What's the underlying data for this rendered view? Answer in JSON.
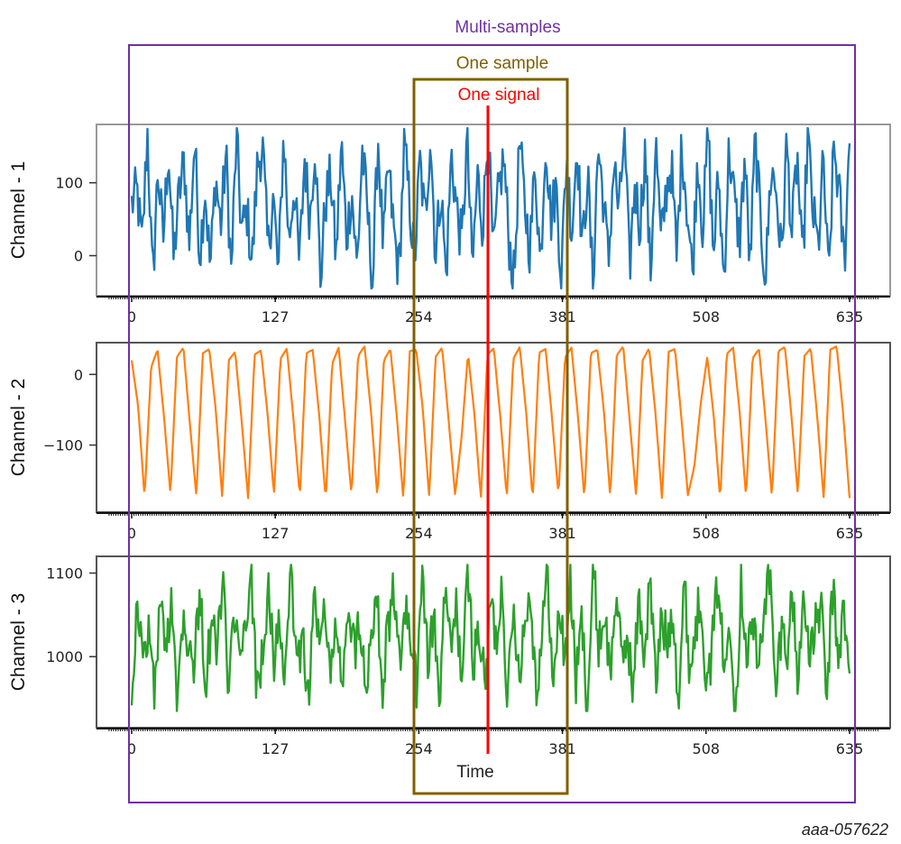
{
  "figure_id": "aaa-057622",
  "annotations": {
    "multi_samples": {
      "label": "Multi-samples",
      "color": "#7030a0"
    },
    "one_sample": {
      "label": "One sample",
      "color": "#7f5f00"
    },
    "one_signal": {
      "label": "One signal",
      "color": "#ff0000"
    }
  },
  "chart_data": {
    "type": "line",
    "xlabel": "Time",
    "xlim": [
      -20,
      660
    ],
    "x_ticks": [
      0,
      127,
      254,
      381,
      508,
      635
    ],
    "x_tick_labels": [
      "0",
      "127",
      "254",
      "381",
      "508",
      "635"
    ],
    "n_points": 636,
    "grid": false,
    "legend": "none",
    "annotation_ranges": {
      "multi_samples_x": [
        0,
        635
      ],
      "one_sample_x": [
        254,
        381
      ],
      "one_signal_x": 314
    },
    "series": [
      {
        "name": "Channel - 1",
        "ylabel": "Channel - 1",
        "color": "#1f77b4",
        "ylim": [
          -55,
          180
        ],
        "y_ticks": [
          0,
          100
        ],
        "y_tick_labels": [
          "0",
          "100"
        ],
        "mean": 55,
        "min": -45,
        "max": 175,
        "values": [
          70,
          90,
          10,
          172,
          -40,
          120,
          20,
          150,
          -5,
          80,
          130,
          15,
          160,
          0,
          95,
          -20,
          110,
          40,
          140,
          -25,
          165,
          30,
          60,
          -10,
          125,
          150,
          5,
          85,
          -30,
          170,
          20,
          100,
          -15,
          135,
          50,
          160,
          -35,
          75,
          110,
          -5,
          155,
          25,
          90,
          -20,
          145,
          60,
          -40,
          165,
          10,
          120,
          35,
          -25,
          150,
          75,
          -10,
          130,
          45,
          170,
          0,
          95,
          -30,
          140,
          65,
          15,
          160,
          -20,
          110,
          40,
          175,
          -5,
          85,
          135,
          20,
          -35,
          155,
          70,
          10,
          125,
          -15,
          165,
          50,
          95,
          -25,
          140,
          30,
          160,
          5,
          115,
          -40,
          150,
          80,
          -10,
          130,
          55,
          170,
          -20,
          100,
          40,
          145,
          -30,
          160,
          15,
          90,
          125,
          -5,
          155,
          65,
          -25,
          140,
          35,
          170,
          0,
          110,
          -35,
          150,
          75,
          20,
          135,
          -15,
          160,
          45,
          -30,
          120,
          90,
          -5,
          155,
          25,
          140,
          -20,
          165,
          60,
          10,
          130,
          -40,
          150,
          85,
          -10,
          160
        ]
      },
      {
        "name": "Channel - 2",
        "ylabel": "Channel - 2",
        "color": "#ff7f0e",
        "ylim": [
          -195,
          45
        ],
        "y_ticks": [
          -100,
          0
        ],
        "y_tick_labels": [
          "-100",
          "0"
        ],
        "min": -180,
        "max": 40,
        "period_samples": 9,
        "values": [
          20,
          -45,
          -175,
          10,
          35,
          -60,
          -170,
          25,
          38,
          -70,
          -172,
          30,
          36,
          -50,
          -174,
          20,
          32,
          -65,
          -176,
          28,
          34,
          -55,
          -171,
          22,
          37,
          -62,
          -173,
          30,
          35,
          -58,
          -178,
          15,
          38,
          -66,
          -172,
          26,
          40,
          -52,
          -175,
          20,
          36,
          -60,
          -177,
          33,
          35,
          -48,
          -174,
          25,
          38,
          -64,
          -170,
          -90,
          30,
          -57,
          -176,
          28,
          37,
          -61,
          -175,
          22,
          39,
          -54,
          -178,
          31,
          36,
          -63,
          -172,
          24,
          38,
          -59,
          -176,
          30,
          35,
          -50,
          -174,
          27,
          40,
          -66,
          -173,
          20,
          37,
          -56,
          -177,
          32,
          36,
          -62,
          -171,
          -130,
          -40,
          25,
          -60,
          -178,
          29,
          38,
          -53,
          -175,
          23,
          36,
          -64,
          -174,
          33,
          39,
          -58,
          -170,
          26,
          37,
          -60,
          -176,
          35,
          40,
          -55,
          -175
        ]
      },
      {
        "name": "Channel - 3",
        "ylabel": "Channel - 3",
        "color": "#2ca02c",
        "ylim": [
          915,
          1120
        ],
        "y_ticks": [
          1000,
          1100
        ],
        "y_tick_labels": [
          "1000",
          "1100"
        ],
        "mean": 1010,
        "min": 935,
        "max": 1110,
        "values": [
          960,
          1065,
          990,
          1040,
          950,
          1070,
          1000,
          1080,
          945,
          1055,
          1020,
          990,
          1085,
          960,
          1045,
          1005,
          1105,
          940,
          1060,
          980,
          1035,
          1090,
          955,
          1015,
          1070,
          995,
          1050,
          965,
          1100,
          985,
          1030,
          948,
          1075,
          1010,
          1060,
          975,
          1045,
          940,
          1085,
          1000,
          1055,
          968,
          1020,
          1095,
          952,
          1040,
          1075,
          985,
          1065,
          1010,
          962,
          1110,
          990,
          1048,
          942,
          1080,
          1005,
          1058,
          970,
          1100,
          995,
          1035,
          958,
          1070,
          1015,
          1092,
          946,
          1055,
          985,
          1040,
          1078,
          960,
          1025,
          1108,
          950,
          1062,
          998,
          1088,
          968,
          1045,
          938,
          1105,
          1012,
          1055,
          975,
          1082,
          990,
          1030,
          955,
          1070,
          1000,
          1095,
          962,
          1048,
          1015,
          1065,
          945,
          1088,
          980,
          1040,
          1072,
          955,
          1020,
          1100,
          970,
          1058,
          935,
          1090,
          1005,
          1045,
          978,
          1068,
          1098,
          950,
          1035,
          1010,
          1075,
          962,
          1092,
          985,
          1040,
          1060,
          945,
          1080,
          1002,
          1055,
          970
        ]
      }
    ]
  }
}
